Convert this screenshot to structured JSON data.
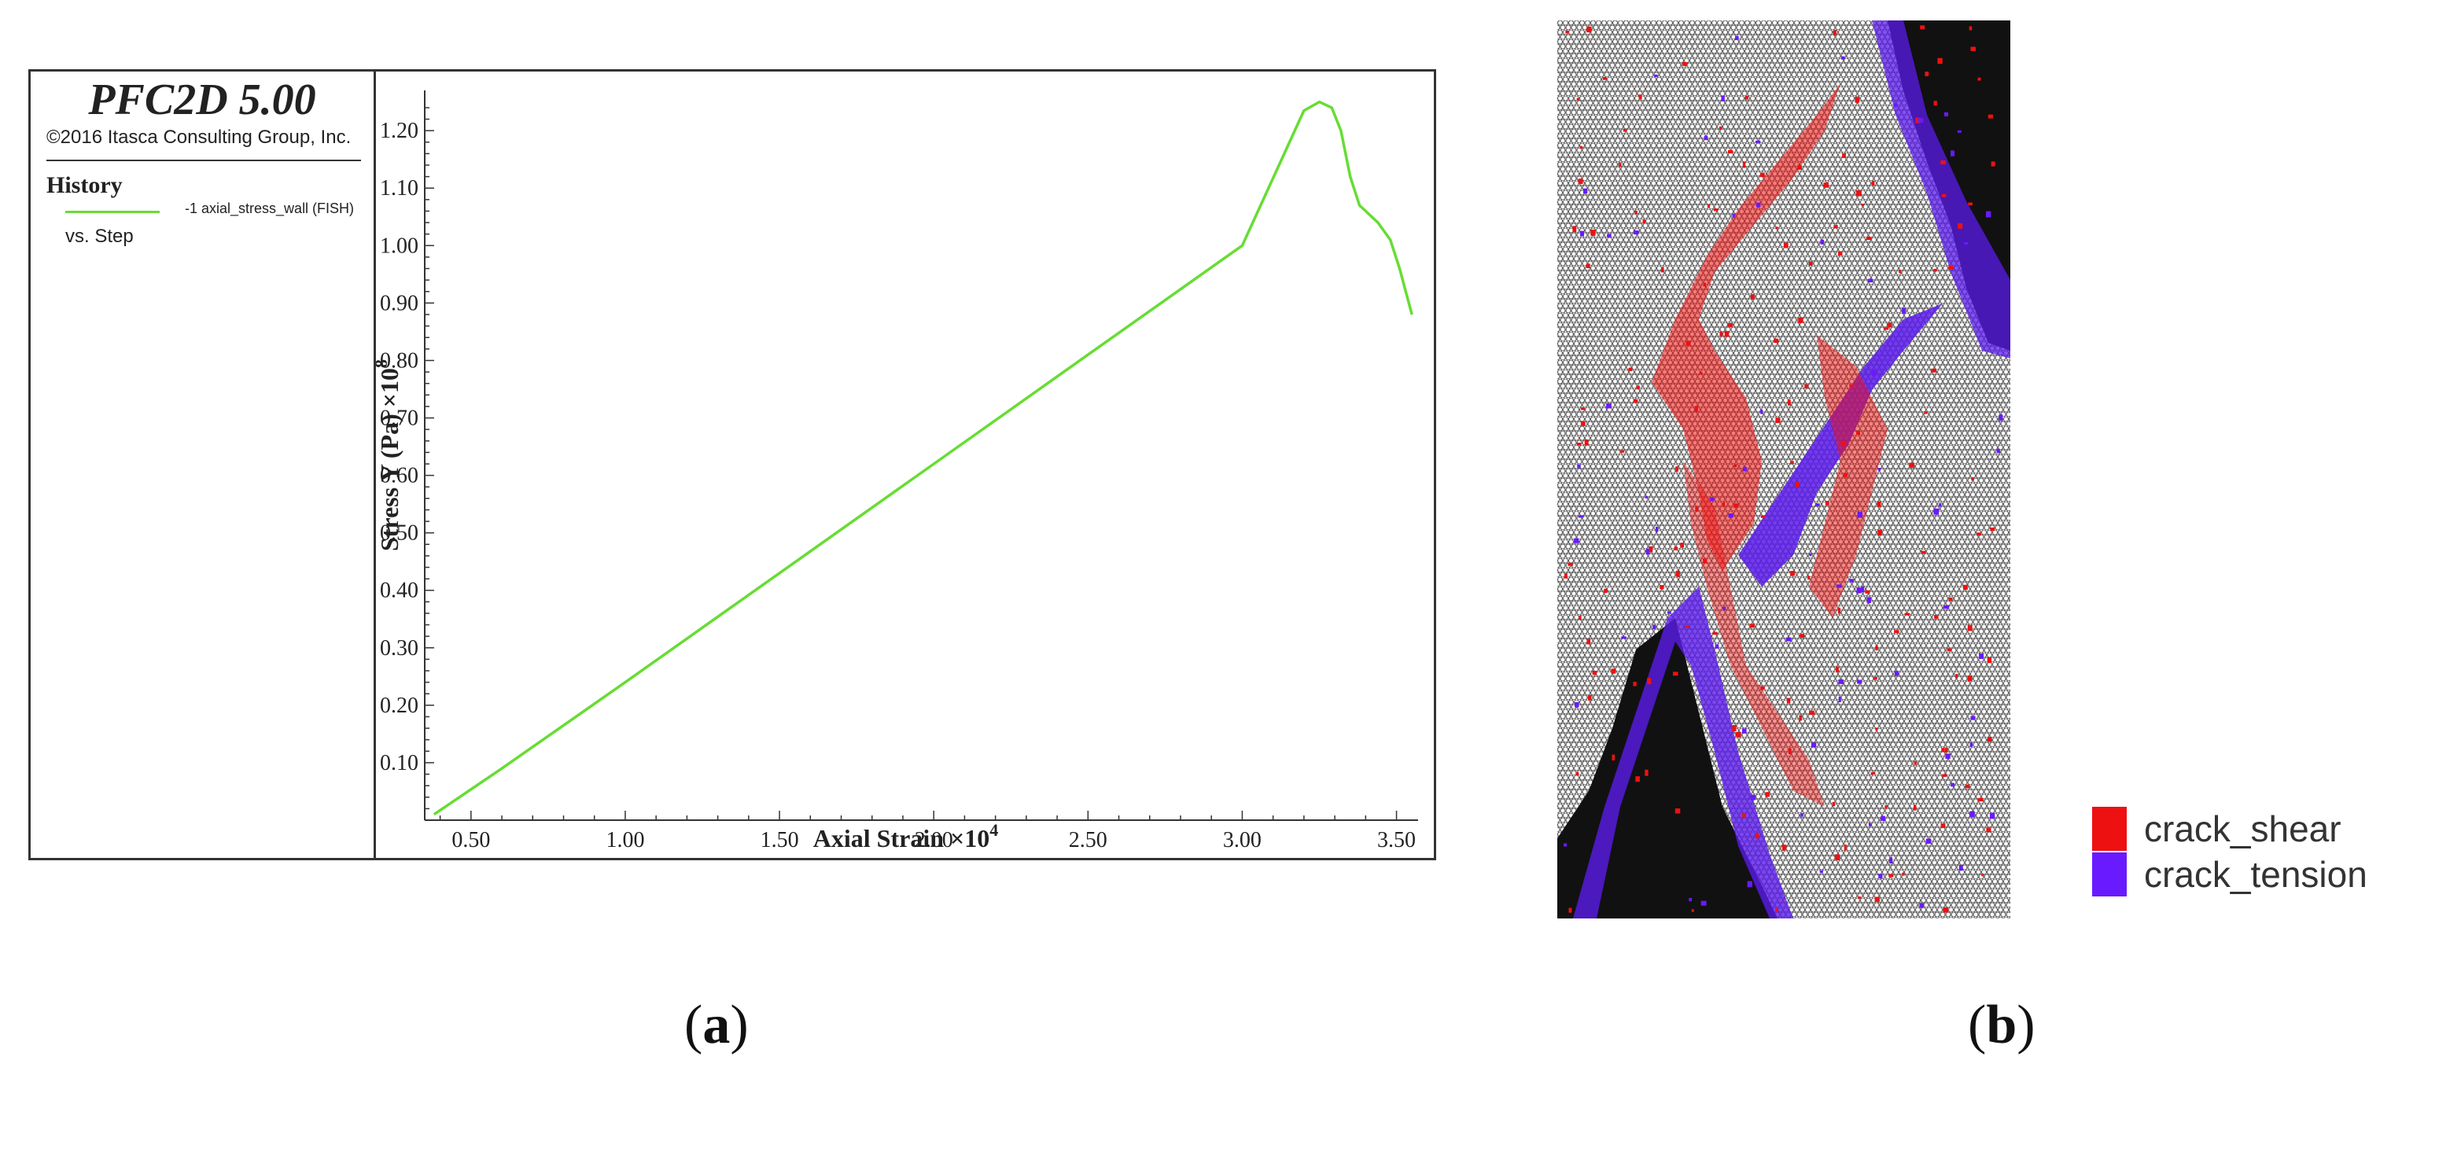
{
  "panel_a": {
    "caption_open": "(",
    "caption_letter": "a",
    "caption_close": ")",
    "software_title": "PFC2D 5.00",
    "copyright": "©2016 Itasca Consulting Group, Inc.",
    "history_label": "History",
    "series_label": "-1 axial_stress_wall (FISH)",
    "vs_label": "vs. Step",
    "line_color": "#66dd33"
  },
  "panel_b": {
    "caption_open": "(",
    "caption_letter": "b",
    "caption_close": ")",
    "legend": [
      {
        "label": "crack_shear",
        "color": "#ee1111"
      },
      {
        "label": "crack_tension",
        "color": "#6a1aff"
      }
    ]
  },
  "chart_data": {
    "type": "line",
    "title": "",
    "xlabel": "Axial Strain ×10",
    "xlabel_exp": "4",
    "ylabel": "Stress Y (Pa) ×10",
    "ylabel_exp": "8",
    "xlim": [
      0.35,
      3.57
    ],
    "ylim": [
      0.0,
      1.27
    ],
    "xticks": [
      "0.50",
      "1.00",
      "1.50",
      "2.00",
      "2.50",
      "3.00",
      "3.50"
    ],
    "yticks": [
      "0.10",
      "0.20",
      "0.30",
      "0.40",
      "0.50",
      "0.60",
      "0.70",
      "0.80",
      "0.90",
      "1.00",
      "1.10",
      "1.20"
    ],
    "grid": false,
    "series": [
      {
        "color": "#66dd33",
        "x": [
          0.38,
          0.6,
          1.0,
          1.5,
          2.0,
          2.5,
          3.0,
          3.2,
          3.25,
          3.29,
          3.32,
          3.35,
          3.38,
          3.4,
          3.44,
          3.48,
          3.51,
          3.53,
          3.55
        ],
        "y": [
          0.01,
          0.09,
          0.24,
          0.43,
          0.62,
          0.81,
          1.0,
          1.235,
          1.25,
          1.24,
          1.2,
          1.12,
          1.07,
          1.06,
          1.04,
          1.01,
          0.96,
          0.92,
          0.88
        ]
      }
    ]
  }
}
